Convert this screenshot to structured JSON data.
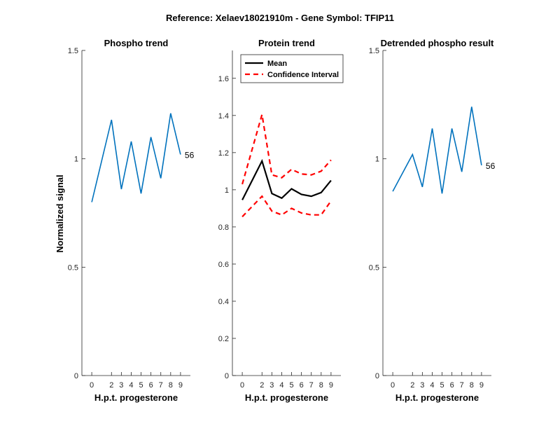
{
  "figure": {
    "title": "Reference:  Xelaev18021910m - Gene Symbol:  TFIP11"
  },
  "colors": {
    "phospho": "#0072BD",
    "mean": "#000000",
    "ci": "#FF0000"
  },
  "chart_data": [
    {
      "type": "line",
      "title": "Phospho trend",
      "xlabel": "H.p.t. progesterone",
      "ylabel": "Normalized signal",
      "x": [
        0,
        2,
        3,
        4,
        5,
        6,
        7,
        8,
        9
      ],
      "xticks": [
        "0",
        "2",
        "3",
        "4",
        "5",
        "6",
        "7",
        "8",
        "9"
      ],
      "ylim": [
        0,
        1.5
      ],
      "yticks": [
        0,
        0.5,
        1,
        1.5
      ],
      "yticklabels": [
        "0",
        "0.5",
        "1",
        "1.5"
      ],
      "grid": false,
      "series": [
        {
          "color": "#0072BD",
          "values": [
            0.8,
            1.18,
            0.86,
            1.08,
            0.84,
            1.1,
            0.91,
            1.21,
            1.02
          ]
        }
      ],
      "annotation": "56"
    },
    {
      "type": "line",
      "title": "Protein trend",
      "xlabel": "H.p.t. progesterone",
      "ylabel": "",
      "x": [
        0,
        2,
        3,
        4,
        5,
        6,
        7,
        8,
        9
      ],
      "xticks": [
        "0",
        "2",
        "3",
        "4",
        "5",
        "6",
        "7",
        "8",
        "9"
      ],
      "ylim": [
        0,
        1.75
      ],
      "yticks": [
        0,
        0.2,
        0.4,
        0.6,
        0.8,
        1,
        1.2,
        1.4,
        1.6
      ],
      "yticklabels": [
        "0",
        "0.2",
        "0.4",
        "0.6",
        "0.8",
        "1",
        "1.2",
        "1.4",
        "1.6"
      ],
      "grid": false,
      "legend": "top-left",
      "series": [
        {
          "name": "Mean",
          "color": "#000000",
          "dash": false,
          "values": [
            0.945,
            1.155,
            0.98,
            0.955,
            1.005,
            0.975,
            0.965,
            0.985,
            1.05
          ]
        },
        {
          "name": "Confidence Interval",
          "color": "#FF0000",
          "dash": true,
          "values": [
            1.03,
            1.405,
            1.08,
            1.065,
            1.11,
            1.085,
            1.08,
            1.1,
            1.16
          ]
        },
        {
          "name": "",
          "color": "#FF0000",
          "dash": true,
          "values": [
            0.855,
            0.965,
            0.885,
            0.865,
            0.9,
            0.875,
            0.865,
            0.865,
            0.94
          ]
        }
      ]
    },
    {
      "type": "line",
      "title": "Detrended phospho result",
      "xlabel": "H.p.t. progesterone",
      "ylabel": "",
      "x": [
        0,
        2,
        3,
        4,
        5,
        6,
        7,
        8,
        9
      ],
      "xticks": [
        "0",
        "2",
        "3",
        "4",
        "5",
        "6",
        "7",
        "8",
        "9"
      ],
      "ylim": [
        0,
        1.5
      ],
      "yticks": [
        0,
        0.5,
        1,
        1.5
      ],
      "yticklabels": [
        "0",
        "0.5",
        "1",
        "1.5"
      ],
      "grid": false,
      "series": [
        {
          "color": "#0072BD",
          "values": [
            0.85,
            1.02,
            0.87,
            1.14,
            0.84,
            1.14,
            0.94,
            1.24,
            0.97
          ]
        }
      ],
      "annotation": "56"
    }
  ]
}
